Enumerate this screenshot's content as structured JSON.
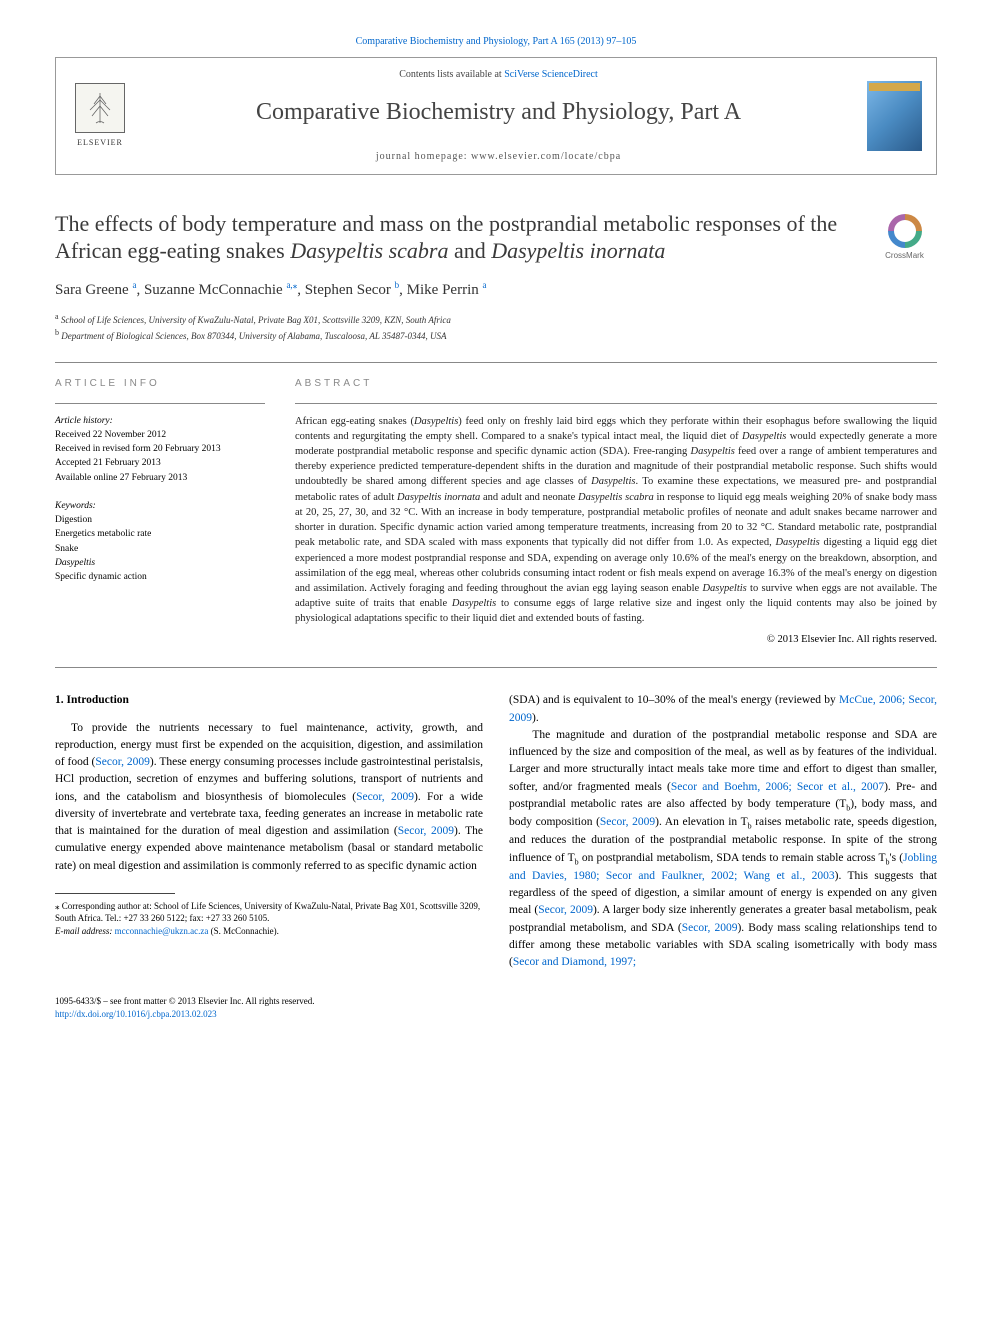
{
  "top_link": "Comparative Biochemistry and Physiology, Part A 165 (2013) 97–105",
  "masthead": {
    "elsevier_label": "ELSEVIER",
    "contents_text": "Contents lists available at ",
    "contents_link": "SciVerse ScienceDirect",
    "journal_name": "Comparative Biochemistry and Physiology, Part A",
    "homepage_label": "journal homepage: ",
    "homepage_url": "www.elsevier.com/locate/cbpa"
  },
  "crossmark": "CrossMark",
  "title_parts": {
    "p1": "The effects of body temperature and mass on the postprandial metabolic responses of the African egg-eating snakes ",
    "i1": "Dasypeltis scabra",
    "p2": " and ",
    "i2": "Dasypeltis inornata"
  },
  "authors": {
    "a1": "Sara Greene",
    "s1": "a",
    "a2": "Suzanne McConnachie",
    "s2": "a,",
    "s2star": "⁎",
    "a3": "Stephen Secor",
    "s3": "b",
    "a4": "Mike Perrin",
    "s4": "a"
  },
  "affiliations": {
    "a": "School of Life Sciences, University of KwaZulu-Natal, Private Bag X01, Scottsville 3209, KZN, South Africa",
    "b": "Department of Biological Sciences, Box 870344, University of Alabama, Tuscaloosa, AL 35487-0344, USA"
  },
  "section_labels": {
    "info": "ARTICLE INFO",
    "abstract": "ABSTRACT"
  },
  "history": {
    "heading": "Article history:",
    "l1": "Received 22 November 2012",
    "l2": "Received in revised form 20 February 2013",
    "l3": "Accepted 21 February 2013",
    "l4": "Available online 27 February 2013"
  },
  "keywords": {
    "heading": "Keywords:",
    "k1": "Digestion",
    "k2": "Energetics metabolic rate",
    "k3": "Snake",
    "k4": "Dasypeltis",
    "k5": "Specific dynamic action"
  },
  "abstract_html": "African egg-eating snakes (<em>Dasypeltis</em>) feed only on freshly laid bird eggs which they perforate within their esophagus before swallowing the liquid contents and regurgitating the empty shell. Compared to a snake's typical intact meal, the liquid diet of <em>Dasypeltis</em> would expectedly generate a more moderate postprandial metabolic response and specific dynamic action (SDA). Free-ranging <em>Dasypeltis</em> feed over a range of ambient temperatures and thereby experience predicted temperature-dependent shifts in the duration and magnitude of their postprandial metabolic response. Such shifts would undoubtedly be shared among different species and age classes of <em>Dasypeltis</em>. To examine these expectations, we measured pre- and postprandial metabolic rates of adult <em>Dasypeltis inornata</em> and adult and neonate <em>Dasypeltis scabra</em> in response to liquid egg meals weighing 20% of snake body mass at 20, 25, 27, 30, and 32 °C. With an increase in body temperature, postprandial metabolic profiles of neonate and adult snakes became narrower and shorter in duration. Specific dynamic action varied among temperature treatments, increasing from 20 to 32 °C. Standard metabolic rate, postprandial peak metabolic rate, and SDA scaled with mass exponents that typically did not differ from 1.0. As expected, <em>Dasypeltis</em> digesting a liquid egg diet experienced a more modest postprandial response and SDA, expending on average only 10.6% of the meal's energy on the breakdown, absorption, and assimilation of the egg meal, whereas other colubrids consuming intact rodent or fish meals expend on average 16.3% of the meal's energy on digestion and assimilation. Actively foraging and feeding throughout the avian egg laying season enable <em>Dasypeltis</em> to survive when eggs are not available. The adaptive suite of traits that enable <em>Dasypeltis</em> to consume eggs of large relative size and ingest only the liquid contents may also be joined by physiological adaptations specific to their liquid diet and extended bouts of fasting.",
  "copyright_line": "© 2013 Elsevier Inc. All rights reserved.",
  "intro_heading": "1. Introduction",
  "intro_left_html": "To provide the nutrients necessary to fuel maintenance, activity, growth, and reproduction, energy must first be expended on the acquisition, digestion, and assimilation of food (<span class=\"ref-link\">Secor, 2009</span>). These energy consuming processes include gastrointestinal peristalsis, HCl production, secretion of enzymes and buffering solutions, transport of nutrients and ions, and the catabolism and biosynthesis of biomolecules (<span class=\"ref-link\">Secor, 2009</span>). For a wide diversity of invertebrate and vertebrate taxa, feeding generates an increase in metabolic rate that is maintained for the duration of meal digestion and assimilation (<span class=\"ref-link\">Secor, 2009</span>). The cumulative energy expended above maintenance metabolism (basal or standard metabolic rate) on meal digestion and assimilation is commonly referred to as specific dynamic action",
  "intro_right_html": "(SDA) and is equivalent to 10–30% of the meal's energy (reviewed by <span class=\"ref-link\">McCue, 2006; Secor, 2009</span>).<br>&nbsp;&nbsp;&nbsp;&nbsp;The magnitude and duration of the postprandial metabolic response and SDA are influenced by the size and composition of the meal, as well as by features of the individual. Larger and more structurally intact meals take more time and effort to digest than smaller, softer, and/or fragmented meals (<span class=\"ref-link\">Secor and Boehm, 2006; Secor et al., 2007</span>). Pre- and postprandial metabolic rates are also affected by body temperature (T<sub>b</sub>), body mass, and body composition (<span class=\"ref-link\">Secor, 2009</span>). An elevation in T<sub>b</sub> raises metabolic rate, speeds digestion, and reduces the duration of the postprandial metabolic response. In spite of the strong influence of T<sub>b</sub> on postprandial metabolism, SDA tends to remain stable across T<sub>b</sub>'s (<span class=\"ref-link\">Jobling and Davies, 1980; Secor and Faulkner, 2002; Wang et al., 2003</span>). This suggests that regardless of the speed of digestion, a similar amount of energy is expended on any given meal (<span class=\"ref-link\">Secor, 2009</span>). A larger body size inherently generates a greater basal metabolism, peak postprandial metabolism, and SDA (<span class=\"ref-link\">Secor, 2009</span>). Body mass scaling relationships tend to differ among these metabolic variables with SDA scaling isometrically with body mass (<span class=\"ref-link\">Secor and Diamond, 1997;</span>",
  "footnotes": {
    "corr": "⁎ Corresponding author at: School of Life Sciences, University of KwaZulu-Natal, Private Bag X01, Scottsville 3209, South Africa. Tel.: +27 33 260 5122; fax: +27 33 260 5105.",
    "email_label": "E-mail address:",
    "email": "mcconnachie@ukzn.ac.za",
    "email_who": "(S. McConnachie)."
  },
  "bottom": {
    "issn": "1095-6433/$ – see front matter © 2013 Elsevier Inc. All rights reserved.",
    "doi": "http://dx.doi.org/10.1016/j.cbpa.2013.02.023"
  },
  "colors": {
    "link": "#0066cc",
    "text": "#000000",
    "grey_text": "#888888"
  }
}
